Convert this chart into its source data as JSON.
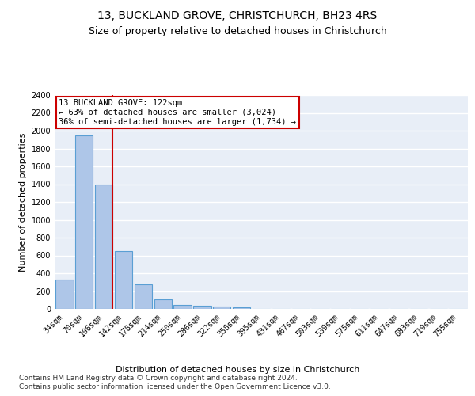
{
  "title": "13, BUCKLAND GROVE, CHRISTCHURCH, BH23 4RS",
  "subtitle": "Size of property relative to detached houses in Christchurch",
  "xlabel": "Distribution of detached houses by size in Christchurch",
  "ylabel": "Number of detached properties",
  "bar_labels": [
    "34sqm",
    "70sqm",
    "106sqm",
    "142sqm",
    "178sqm",
    "214sqm",
    "250sqm",
    "286sqm",
    "322sqm",
    "358sqm",
    "395sqm",
    "431sqm",
    "467sqm",
    "503sqm",
    "539sqm",
    "575sqm",
    "611sqm",
    "647sqm",
    "683sqm",
    "719sqm",
    "755sqm"
  ],
  "bar_values": [
    325,
    1950,
    1400,
    650,
    280,
    105,
    48,
    38,
    25,
    20,
    0,
    0,
    0,
    0,
    0,
    0,
    0,
    0,
    0,
    0,
    0
  ],
  "bar_color": "#aec6e8",
  "bar_edgecolor": "#5a9fd4",
  "bar_linewidth": 0.8,
  "red_line_color": "#cc0000",
  "annotation_text": "13 BUCKLAND GROVE: 122sqm\n← 63% of detached houses are smaller (3,024)\n36% of semi-detached houses are larger (1,734) →",
  "annotation_box_color": "#ffffff",
  "annotation_box_edgecolor": "#cc0000",
  "ylim": [
    0,
    2400
  ],
  "yticks": [
    0,
    200,
    400,
    600,
    800,
    1000,
    1200,
    1400,
    1600,
    1800,
    2000,
    2200,
    2400
  ],
  "background_color": "#e8eef7",
  "grid_color": "#ffffff",
  "footer_line1": "Contains HM Land Registry data © Crown copyright and database right 2024.",
  "footer_line2": "Contains public sector information licensed under the Open Government Licence v3.0.",
  "title_fontsize": 10,
  "subtitle_fontsize": 9,
  "label_fontsize": 8,
  "tick_fontsize": 7,
  "footer_fontsize": 6.5
}
